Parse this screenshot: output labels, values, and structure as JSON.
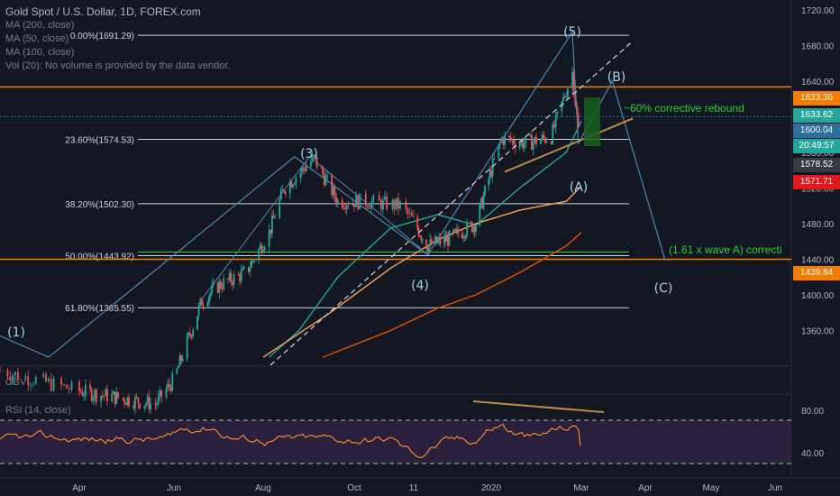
{
  "legend": {
    "title": "Gold Spot / U.S. Dollar, 1D, FOREX.com",
    "lines": [
      "MA (200, close)",
      "MA (50, close)",
      "MA (100, close)",
      "Vol (20): No volume is provided by the data vendor."
    ]
  },
  "panes": {
    "obv_label": "OBV",
    "rsi_label": "RSI (14, close)"
  },
  "colors": {
    "background": "#131722",
    "up": "#26a69a",
    "down": "#ef5350",
    "fib": "#d1d4dc",
    "orange": "#f57c00",
    "ma200": "#e65100",
    "ma100": "#f7a35c",
    "ma50": "#26a69a",
    "rsi": "#ef8a2a",
    "annot": "#2ecc40",
    "wave": "#a7d3e6"
  },
  "price_axis": {
    "ticks": [
      "1720.00",
      "1680.00",
      "1640.00",
      "1560.00",
      "1520.00",
      "1480.00",
      "1440.00",
      "1400.00",
      "1360.00"
    ]
  },
  "price_badges": [
    {
      "text": "1633.36",
      "bg": "#f57c00"
    },
    {
      "text": "1633.62",
      "bg": "#26a69a"
    },
    {
      "text": "1600.04",
      "bg": "#2a6f9e"
    },
    {
      "text": "20:49:57",
      "bg": "#26a69a"
    },
    {
      "text": "1578.52",
      "bg": "#363a45"
    },
    {
      "text": "1571.71",
      "bg": "#e0191f"
    },
    {
      "text": "1439.84",
      "bg": "#f57c00"
    }
  ],
  "rsi_axis": {
    "ticks": [
      "80.00",
      "40.00"
    ]
  },
  "date_axis": {
    "ticks": [
      "Apr",
      "Jun",
      "Aug",
      "Oct",
      "11",
      "2020",
      "Mar",
      "Apr",
      "May",
      "Jun"
    ]
  },
  "fib_levels": [
    {
      "label": "0.00%(1691.29)",
      "price": 1691.29,
      "color": "#d1d4dc"
    },
    {
      "label": "23.60%(1574.53)",
      "price": 1574.53,
      "color": "#d1d4dc"
    },
    {
      "label": "38.20%(1502.30)",
      "price": 1502.3,
      "color": "#d1d4dc"
    },
    {
      "label": "50.00%(1443.92)",
      "price": 1443.92,
      "color": "#d1d4dc"
    },
    {
      "label": "61.80%(1385.55)",
      "price": 1385.55,
      "color": "#d1d4dc"
    }
  ],
  "horizontal_levels": [
    1633.36,
    1439.84
  ],
  "wave_labels": [
    "(1)",
    "(3)",
    "(4)",
    "(5)",
    "(A)",
    "(B)",
    "(C)"
  ],
  "annotations": {
    "rebound": "~60% corrective rebound",
    "extension": "(1.61 x wave A) correcti"
  },
  "chart_data": {
    "type": "candlestick",
    "symbol": "Gold Spot / U.S. Dollar",
    "interval": "1D",
    "ylim": [
      1325,
      1735
    ],
    "x_range": [
      "2019-03",
      "2020-06"
    ],
    "close_path": [
      {
        "date": "2019-03-01",
        "price": 1315
      },
      {
        "date": "2019-04-01",
        "price": 1292
      },
      {
        "date": "2019-05-01",
        "price": 1283
      },
      {
        "date": "2019-05-20",
        "price": 1277
      },
      {
        "date": "2019-06-01",
        "price": 1305
      },
      {
        "date": "2019-06-20",
        "price": 1393
      },
      {
        "date": "2019-07-01",
        "price": 1410
      },
      {
        "date": "2019-07-20",
        "price": 1425
      },
      {
        "date": "2019-08-05",
        "price": 1470
      },
      {
        "date": "2019-08-15",
        "price": 1520
      },
      {
        "date": "2019-09-04",
        "price": 1553
      },
      {
        "date": "2019-09-20",
        "price": 1505
      },
      {
        "date": "2019-10-05",
        "price": 1505
      },
      {
        "date": "2019-10-25",
        "price": 1500
      },
      {
        "date": "2019-11-12",
        "price": 1455
      },
      {
        "date": "2019-11-29",
        "price": 1463
      },
      {
        "date": "2019-12-20",
        "price": 1480
      },
      {
        "date": "2020-01-08",
        "price": 1575
      },
      {
        "date": "2020-01-25",
        "price": 1570
      },
      {
        "date": "2020-02-10",
        "price": 1578
      },
      {
        "date": "2020-02-24",
        "price": 1650
      },
      {
        "date": "2020-02-28",
        "price": 1585
      },
      {
        "date": "2020-03-02",
        "price": 1600
      }
    ],
    "rsi": {
      "ylim": [
        20,
        100
      ],
      "levels": [
        70,
        30
      ],
      "last": 47
    }
  }
}
